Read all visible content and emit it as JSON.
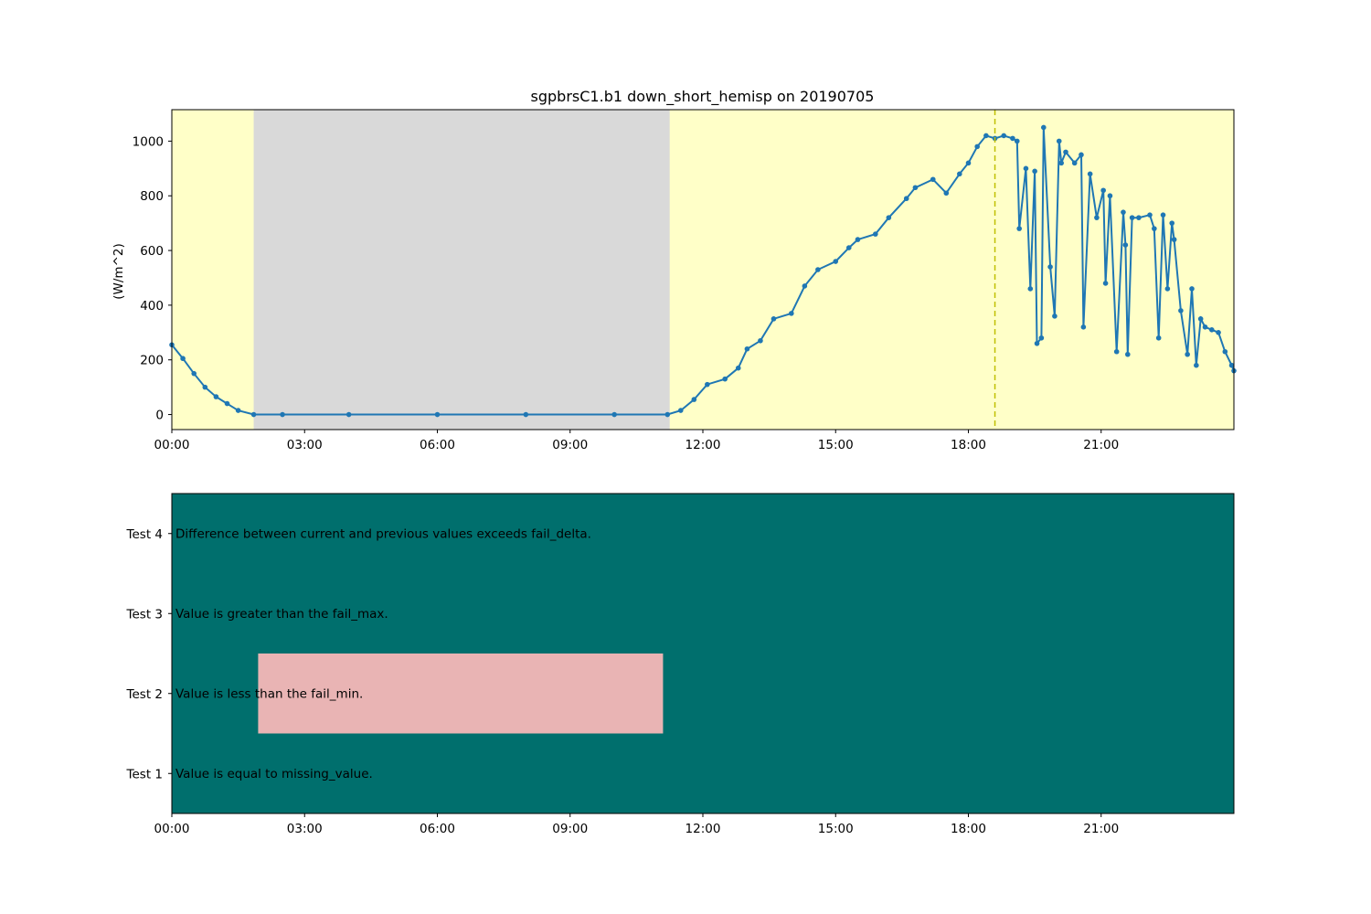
{
  "chart_data": [
    {
      "type": "line",
      "title": "sgpbrsC1.b1 down_short_hemisp on 20190705",
      "xlabel": "",
      "ylabel": "(W/m^2)",
      "x_ticks": [
        "00:00",
        "03:00",
        "06:00",
        "09:00",
        "12:00",
        "15:00",
        "18:00",
        "21:00"
      ],
      "y_ticks": [
        0,
        200,
        400,
        600,
        800,
        1000
      ],
      "xlim_hours": [
        0,
        24
      ],
      "ylim": [
        -55,
        1115
      ],
      "grid": false,
      "legend": "none",
      "line_color": "#1f77b4",
      "background_color": "#ffffc8",
      "shaded_region_color": "#d9d9d9",
      "shaded_region_hours": [
        1.85,
        11.25
      ],
      "vline_hour": 18.6,
      "vline_color": "#bfbf00",
      "series": [
        {
          "x_hours": [
            0,
            0.25,
            0.5,
            0.75,
            1.0,
            1.25,
            1.5,
            1.85,
            2.5,
            4,
            6,
            8,
            10,
            11.2,
            11.5,
            11.8,
            12.1,
            12.5,
            12.8,
            13.0,
            13.3,
            13.6,
            14.0,
            14.3,
            14.6,
            15.0,
            15.3,
            15.5,
            15.9,
            16.2,
            16.6,
            16.8,
            17.2,
            17.5,
            17.8,
            18.0,
            18.2,
            18.4,
            18.6,
            18.8,
            19.0,
            19.1,
            19.15,
            19.3,
            19.4,
            19.5,
            19.55,
            19.65,
            19.7,
            19.85,
            19.95,
            20.05,
            20.1,
            20.2,
            20.4,
            20.55,
            20.6,
            20.75,
            20.9,
            21.05,
            21.1,
            21.2,
            21.35,
            21.5,
            21.55,
            21.6,
            21.7,
            21.85,
            22.1,
            22.2,
            22.3,
            22.4,
            22.5,
            22.6,
            22.65,
            22.8,
            22.95,
            23.05,
            23.15,
            23.25,
            23.35,
            23.5,
            23.65,
            23.8,
            23.95,
            24.0
          ],
          "values": [
            255,
            205,
            150,
            100,
            65,
            40,
            15,
            0,
            0,
            0,
            0,
            0,
            0,
            0,
            15,
            55,
            110,
            130,
            170,
            240,
            270,
            350,
            370,
            470,
            530,
            560,
            610,
            640,
            660,
            720,
            790,
            830,
            860,
            810,
            880,
            920,
            980,
            1020,
            1010,
            1020,
            1010,
            1000,
            680,
            900,
            460,
            890,
            260,
            280,
            1050,
            540,
            360,
            1000,
            920,
            960,
            920,
            950,
            320,
            880,
            720,
            820,
            480,
            800,
            230,
            740,
            620,
            220,
            720,
            720,
            730,
            680,
            280,
            730,
            460,
            700,
            640,
            380,
            220,
            460,
            180,
            350,
            320,
            310,
            300,
            230,
            180,
            160
          ]
        }
      ]
    },
    {
      "type": "heatmap",
      "title": "",
      "xlabel": "",
      "ylabel": "",
      "x_ticks": [
        "00:00",
        "03:00",
        "06:00",
        "09:00",
        "12:00",
        "15:00",
        "18:00",
        "21:00"
      ],
      "xlim_hours": [
        0,
        24
      ],
      "grid": false,
      "legend": "none",
      "pass_color": "#006f6d",
      "fail_color": "#e9b4b4",
      "categories": [
        "Test 1",
        "Test 2",
        "Test 3",
        "Test 4"
      ],
      "tests": [
        {
          "label": "Test 1",
          "description": "Value is equal to missing_value.",
          "fail_intervals_hours": []
        },
        {
          "label": "Test 2",
          "description": "Value is less than the fail_min.",
          "fail_intervals_hours": [
            [
              1.95,
              11.1
            ]
          ]
        },
        {
          "label": "Test 3",
          "description": "Value is greater than the fail_max.",
          "fail_intervals_hours": []
        },
        {
          "label": "Test 4",
          "description": "Difference between current and previous values exceeds fail_delta.",
          "fail_intervals_hours": []
        }
      ]
    }
  ]
}
